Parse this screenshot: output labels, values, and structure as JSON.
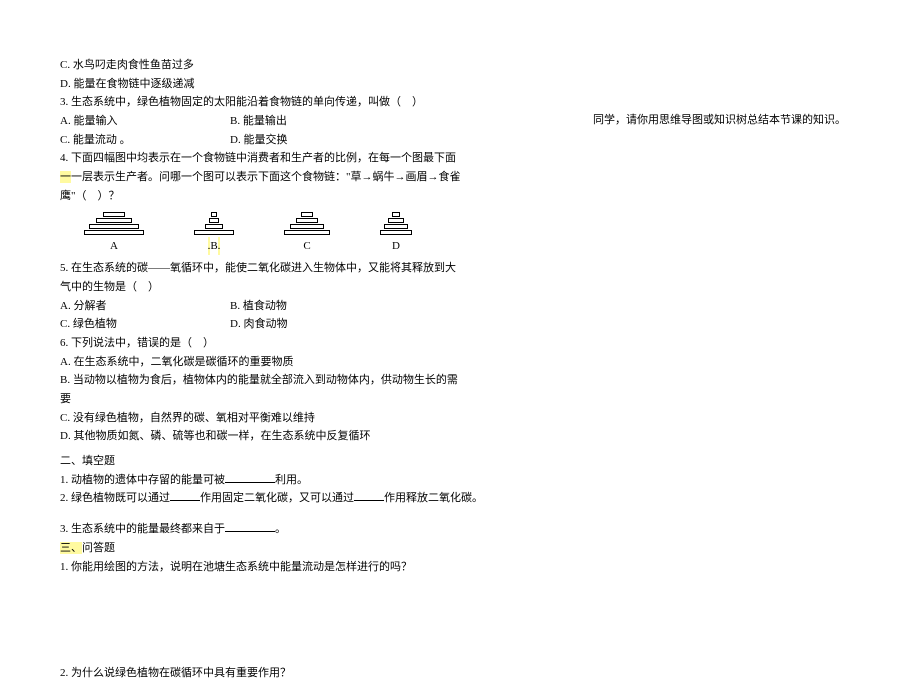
{
  "right_note": "同学，请你用思维导图或知识树总结本节课的知识。",
  "q_c": "C. 水鸟叼走肉食性鱼苗过多",
  "q_d": "D. 能量在食物链中逐级递减",
  "q3": "3. 生态系统中，绿色植物固定的太阳能沿着食物链的单向传递，叫做（　）",
  "q3a": "A. 能量输入",
  "q3b": "B. 能量输出",
  "q3c": "C. 能量流动 。",
  "q3d": "D. 能量交换",
  "q4a": "4. 下面四幅图中均表示在一个食物链中消费者和生产者的比例，在每一个图最下面",
  "q4b": "一层表示生产者。问哪一个图可以表示下面这个食物链：\"草→蜗牛→画眉→食雀",
  "q4c": "鹰\"（　）？",
  "lblA": "A",
  "lblB": "B",
  "lblC": "C",
  "lblD": "D",
  "q5a": "5. 在生态系统的碳——氧循环中，能使二氧化碳进入生物体中，又能将其释放到大",
  "q5b": "气中的生物是（　）",
  "q5optA": "A. 分解者",
  "q5optB": "B. 植食动物",
  "q5optC": "C. 绿色植物",
  "q5optD": "D. 肉食动物",
  "q6": "6. 下列说法中，错误的是（　）",
  "q6a": "A. 在生态系统中，二氧化碳是碳循环的重要物质",
  "q6b": "B. 当动物以植物为食后，植物体内的能量就全部流入到动物体内，供动物生长的需",
  "q6b2": "要",
  "q6c": "C. 没有绿色植物，自然界的碳、氧相对平衡难以维持",
  "q6d": "D. 其他物质如氮、磷、硫等也和碳一样，在生态系统中反复循环",
  "sec2": "二、填空题",
  "f1a": "1. 动植物的遗体中存留的能量可被",
  "f1b": "利用。",
  "f2a": "2. 绿色植物既可以通过",
  "f2b": "作用固定二氧化碳，又可以通过",
  "f2c": "作用释放二氧化碳。",
  "f3a": "3. 生态系统中的能量最终都来自于",
  "f3b": "。",
  "sec3": "三、问答题",
  "a1": "1. 你能用绘图的方法，说明在池塘生态系统中能量流动是怎样进行的吗？",
  "a2": "2. 为什么说绿色植物在碳循环中具有重要作用？",
  "figs": {
    "A": [
      60,
      50,
      36,
      22
    ],
    "B": [
      40,
      18,
      10,
      6
    ],
    "C": [
      46,
      34,
      22,
      12
    ],
    "D": [
      32,
      24,
      16,
      8
    ]
  }
}
